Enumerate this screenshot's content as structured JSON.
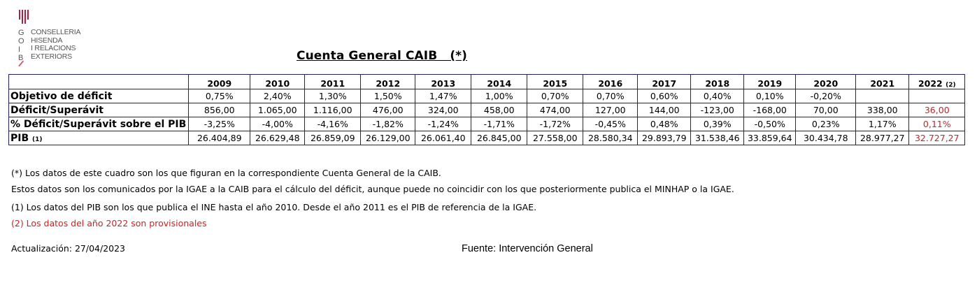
{
  "logo": {
    "letters": [
      "G",
      "O",
      "I",
      "B"
    ],
    "lines": [
      "CONSELLERIA",
      "HISENDA",
      "I RELACIONS",
      "EXTERIORS"
    ]
  },
  "title": "Cuenta General CAIB   (*)",
  "table": {
    "years": [
      "2009",
      "2010",
      "2011",
      "2012",
      "2013",
      "2014",
      "2015",
      "2016",
      "2017",
      "2018",
      "2019",
      "2020",
      "2021",
      "2022"
    ],
    "last_year_note": "(2)",
    "rows": [
      {
        "label": "Objetivo de déficit",
        "note": "",
        "values": [
          "0,75%",
          "2,40%",
          "1,30%",
          "1,50%",
          "1,47%",
          "1,00%",
          "0,70%",
          "0,70%",
          "0,60%",
          "0,40%",
          "0,10%",
          "-0,20%",
          "",
          ""
        ]
      },
      {
        "label": "Déficit/Superávit",
        "note": "",
        "values": [
          "856,00",
          "1.065,00",
          "1.116,00",
          "476,00",
          "324,00",
          "458,00",
          "474,00",
          "127,00",
          "144,00",
          "-123,00",
          "-168,00",
          "70,00",
          "338,00",
          "36,00"
        ]
      },
      {
        "label": "% Déficit/Superávit sobre el PIB",
        "note": "",
        "values": [
          "-3,25%",
          "-4,00%",
          "-4,16%",
          "-1,82%",
          "-1,24%",
          "-1,71%",
          "-1,72%",
          "-0,45%",
          "0,48%",
          "0,39%",
          "-0,50%",
          "0,23%",
          "1,17%",
          "0,11%"
        ]
      },
      {
        "label": "PIB",
        "note": "(1)",
        "values": [
          "26.404,89",
          "26.629,48",
          "26.859,09",
          "26.129,00",
          "26.061,40",
          "26.845,00",
          "27.558,00",
          "28.580,34",
          "29.893,79",
          "31.538,46",
          "33.859,64",
          "30.434,78",
          "28.977,27",
          "32.727,27"
        ]
      }
    ]
  },
  "notes": {
    "n1": "(*) Los datos de este cuadro son los que figuran en la correspondiente Cuenta General de la CAIB.",
    "n2": "Estos datos son los comunicados por la IGAE a la CAIB para el cálculo del déficit, aunque puede no coincidir con los que posteriormente publica el MINHAP o la IGAE.",
    "n3": "(1)  Los datos del PIB son los que publica el INE hasta el año 2010. Desde el año 2011 es el PIB de referencia de la IGAE.",
    "n4": "(2) Los datos del año 2022 son provisionales"
  },
  "footer": {
    "updated": "Actualización: 27/04/2023",
    "source": "Fuente: Intervención General"
  },
  "colors": {
    "accent": "#b01e3c",
    "highlight": "#d02020",
    "border": "#1f1f7a"
  }
}
